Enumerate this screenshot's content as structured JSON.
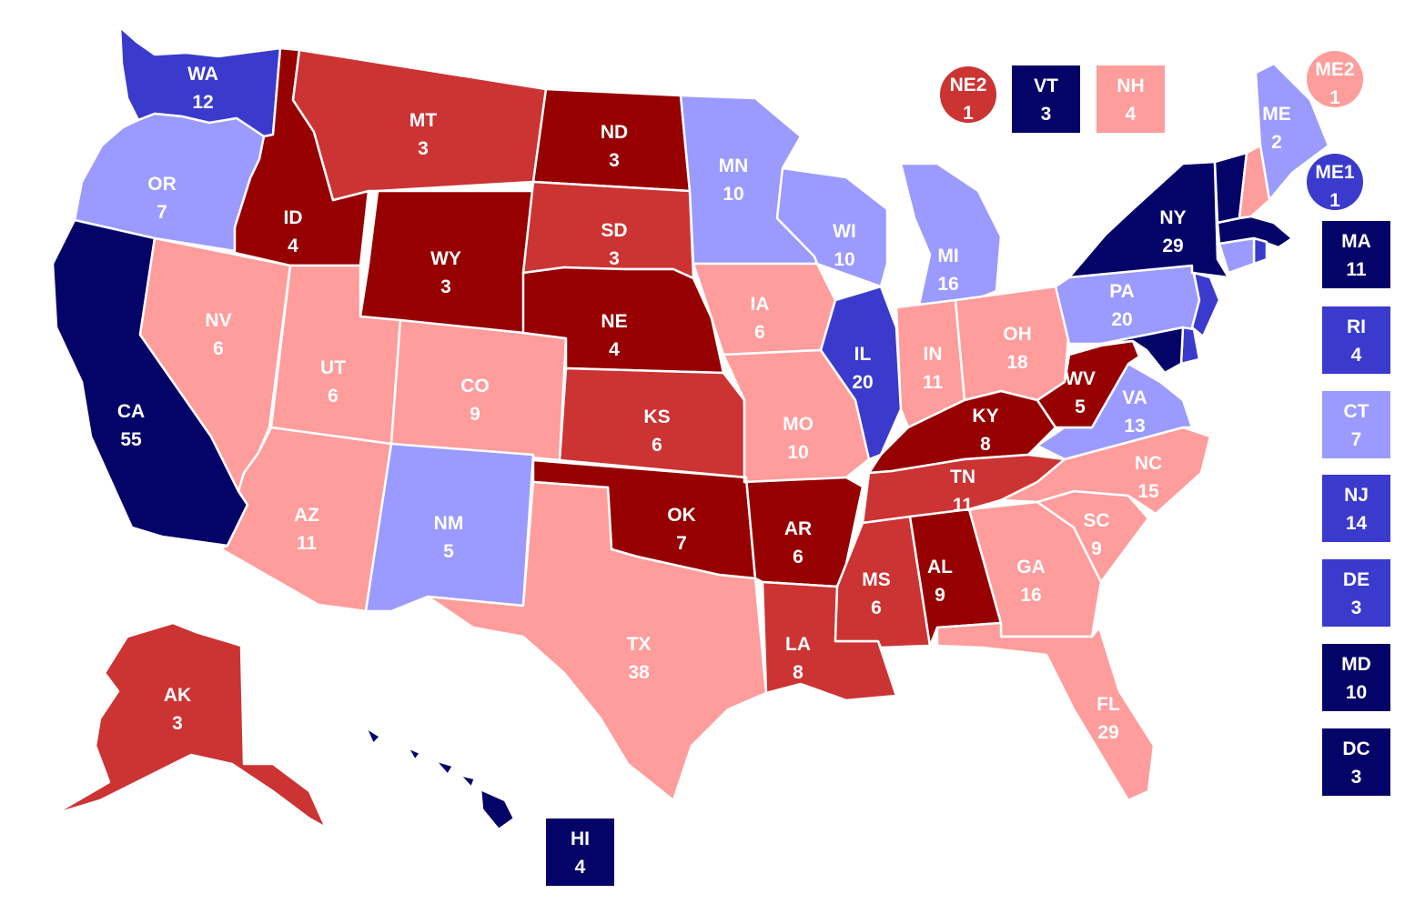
{
  "colors": {
    "safe_d": "#040468",
    "likely_d": "#3a3acc",
    "lean_d": "#9a9aff",
    "lean_r": "#ff9c9c",
    "likely_r": "#cc3333",
    "safe_r": "#960000"
  },
  "states": [
    {
      "abbr": "WA",
      "ev": "12",
      "rating": "likely_d"
    },
    {
      "abbr": "OR",
      "ev": "7",
      "rating": "lean_d"
    },
    {
      "abbr": "CA",
      "ev": "55",
      "rating": "safe_d"
    },
    {
      "abbr": "NV",
      "ev": "6",
      "rating": "lean_r"
    },
    {
      "abbr": "ID",
      "ev": "4",
      "rating": "safe_r"
    },
    {
      "abbr": "MT",
      "ev": "3",
      "rating": "likely_r"
    },
    {
      "abbr": "WY",
      "ev": "3",
      "rating": "safe_r"
    },
    {
      "abbr": "UT",
      "ev": "6",
      "rating": "lean_r"
    },
    {
      "abbr": "AZ",
      "ev": "11",
      "rating": "lean_r"
    },
    {
      "abbr": "CO",
      "ev": "9",
      "rating": "lean_r"
    },
    {
      "abbr": "NM",
      "ev": "5",
      "rating": "lean_d"
    },
    {
      "abbr": "ND",
      "ev": "3",
      "rating": "safe_r"
    },
    {
      "abbr": "SD",
      "ev": "3",
      "rating": "likely_r"
    },
    {
      "abbr": "NE",
      "ev": "4",
      "rating": "safe_r"
    },
    {
      "abbr": "KS",
      "ev": "6",
      "rating": "likely_r"
    },
    {
      "abbr": "OK",
      "ev": "7",
      "rating": "safe_r"
    },
    {
      "abbr": "TX",
      "ev": "38",
      "rating": "lean_r"
    },
    {
      "abbr": "MN",
      "ev": "10",
      "rating": "lean_d"
    },
    {
      "abbr": "IA",
      "ev": "6",
      "rating": "lean_r"
    },
    {
      "abbr": "MO",
      "ev": "10",
      "rating": "lean_r"
    },
    {
      "abbr": "AR",
      "ev": "6",
      "rating": "safe_r"
    },
    {
      "abbr": "LA",
      "ev": "8",
      "rating": "likely_r"
    },
    {
      "abbr": "WI",
      "ev": "10",
      "rating": "lean_d"
    },
    {
      "abbr": "IL",
      "ev": "20",
      "rating": "likely_d"
    },
    {
      "abbr": "MI",
      "ev": "16",
      "rating": "lean_d"
    },
    {
      "abbr": "IN",
      "ev": "11",
      "rating": "lean_r"
    },
    {
      "abbr": "OH",
      "ev": "18",
      "rating": "lean_r"
    },
    {
      "abbr": "KY",
      "ev": "8",
      "rating": "safe_r"
    },
    {
      "abbr": "TN",
      "ev": "11",
      "rating": "likely_r"
    },
    {
      "abbr": "MS",
      "ev": "6",
      "rating": "likely_r"
    },
    {
      "abbr": "AL",
      "ev": "9",
      "rating": "safe_r"
    },
    {
      "abbr": "GA",
      "ev": "16",
      "rating": "lean_r"
    },
    {
      "abbr": "FL",
      "ev": "29",
      "rating": "lean_r"
    },
    {
      "abbr": "SC",
      "ev": "9",
      "rating": "lean_r"
    },
    {
      "abbr": "NC",
      "ev": "15",
      "rating": "lean_r"
    },
    {
      "abbr": "VA",
      "ev": "13",
      "rating": "lean_d"
    },
    {
      "abbr": "WV",
      "ev": "5",
      "rating": "safe_r"
    },
    {
      "abbr": "PA",
      "ev": "20",
      "rating": "lean_d"
    },
    {
      "abbr": "NY",
      "ev": "29",
      "rating": "safe_d"
    },
    {
      "abbr": "ME",
      "ev": "2",
      "rating": "lean_d"
    },
    {
      "abbr": "AK",
      "ev": "3",
      "rating": "likely_r"
    },
    {
      "abbr": "HI",
      "ev": "4",
      "rating": "safe_d"
    }
  ],
  "unlabeled": [
    {
      "abbr": "VT",
      "rating": "safe_d"
    },
    {
      "abbr": "NH",
      "rating": "lean_r"
    },
    {
      "abbr": "MA",
      "rating": "safe_d"
    },
    {
      "abbr": "RI",
      "rating": "likely_d"
    },
    {
      "abbr": "CT",
      "rating": "lean_d"
    },
    {
      "abbr": "NJ",
      "rating": "likely_d"
    },
    {
      "abbr": "DE",
      "rating": "likely_d"
    },
    {
      "abbr": "MD",
      "rating": "safe_d"
    }
  ],
  "boxes": [
    {
      "abbr": "VT",
      "ev": "3",
      "rating": "safe_d"
    },
    {
      "abbr": "NH",
      "ev": "4",
      "rating": "lean_r"
    },
    {
      "abbr": "MA",
      "ev": "11",
      "rating": "safe_d"
    },
    {
      "abbr": "RI",
      "ev": "4",
      "rating": "likely_d"
    },
    {
      "abbr": "CT",
      "ev": "7",
      "rating": "lean_d"
    },
    {
      "abbr": "NJ",
      "ev": "14",
      "rating": "likely_d"
    },
    {
      "abbr": "DE",
      "ev": "3",
      "rating": "likely_d"
    },
    {
      "abbr": "MD",
      "ev": "10",
      "rating": "safe_d"
    },
    {
      "abbr": "DC",
      "ev": "3",
      "rating": "safe_d"
    },
    {
      "abbr": "HI",
      "ev": "4",
      "rating": "safe_d"
    }
  ],
  "districts": [
    {
      "abbr": "NE2",
      "ev": "1",
      "rating": "likely_r"
    },
    {
      "abbr": "ME2",
      "ev": "1",
      "rating": "lean_r"
    },
    {
      "abbr": "ME1",
      "ev": "1",
      "rating": "likely_d"
    }
  ]
}
